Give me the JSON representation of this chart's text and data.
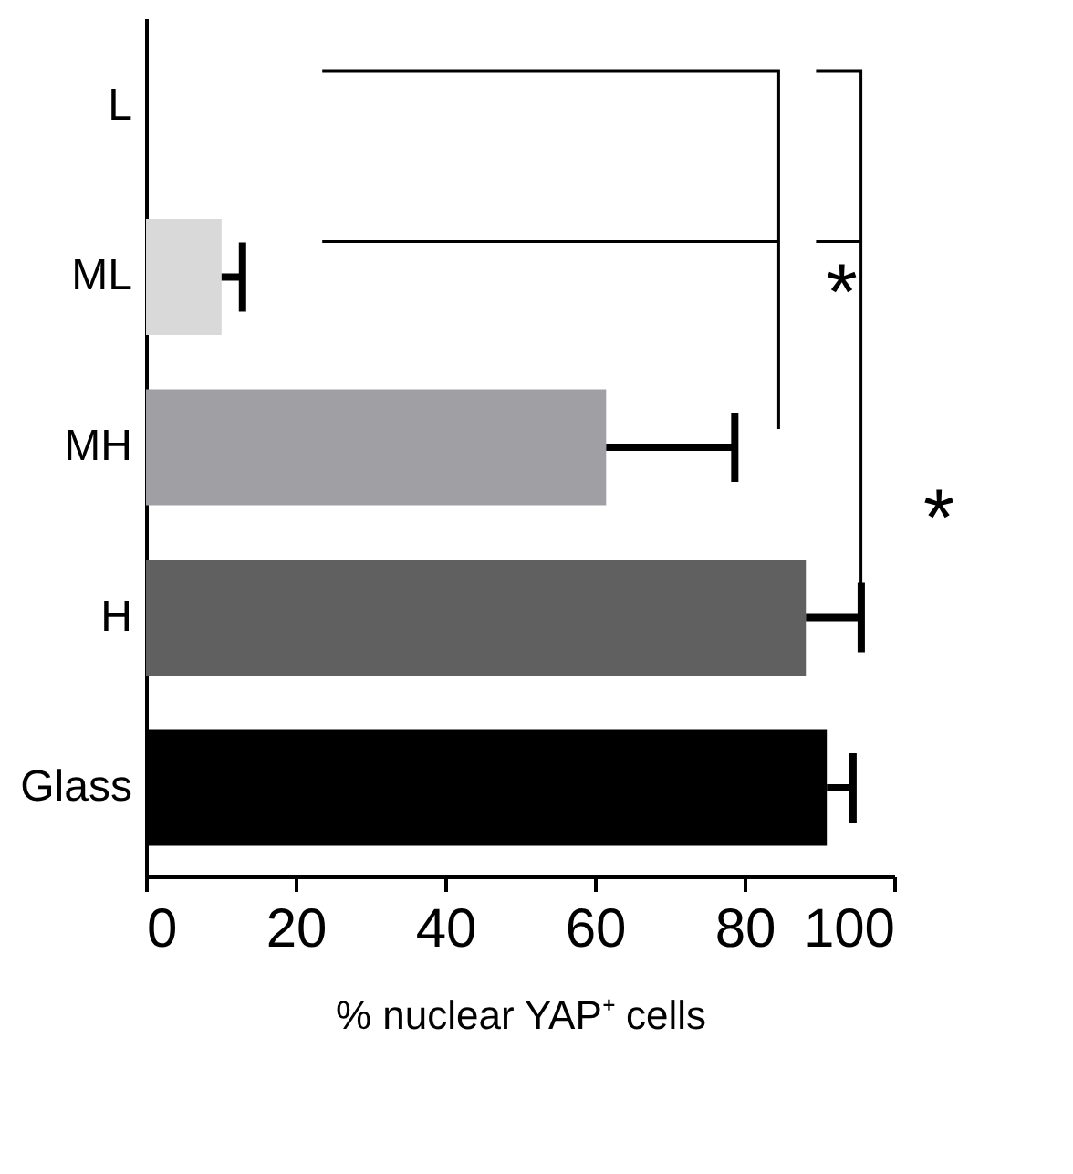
{
  "chart_data": {
    "type": "bar",
    "orientation": "horizontal",
    "xlabel": "% nuclear YAP⁺ cells",
    "categories": [
      "L",
      "ML",
      "MH",
      "H",
      "Glass"
    ],
    "values": [
      0,
      10.1,
      61.5,
      88.2,
      91.0
    ],
    "colors": [
      "#ffffff",
      "#d9d9d9",
      "#a0a0a4",
      "#606060",
      "#000000"
    ],
    "errors": [
      null,
      [
        10.1,
        12.9
      ],
      [
        61.5,
        78.7
      ],
      [
        88.2,
        95.6
      ],
      [
        91.0,
        94.5
      ]
    ],
    "xlim": [
      0,
      100
    ],
    "xticks": [
      0,
      20,
      40,
      60,
      80,
      100
    ],
    "grid": false,
    "annotations": [
      "*",
      "*"
    ]
  }
}
